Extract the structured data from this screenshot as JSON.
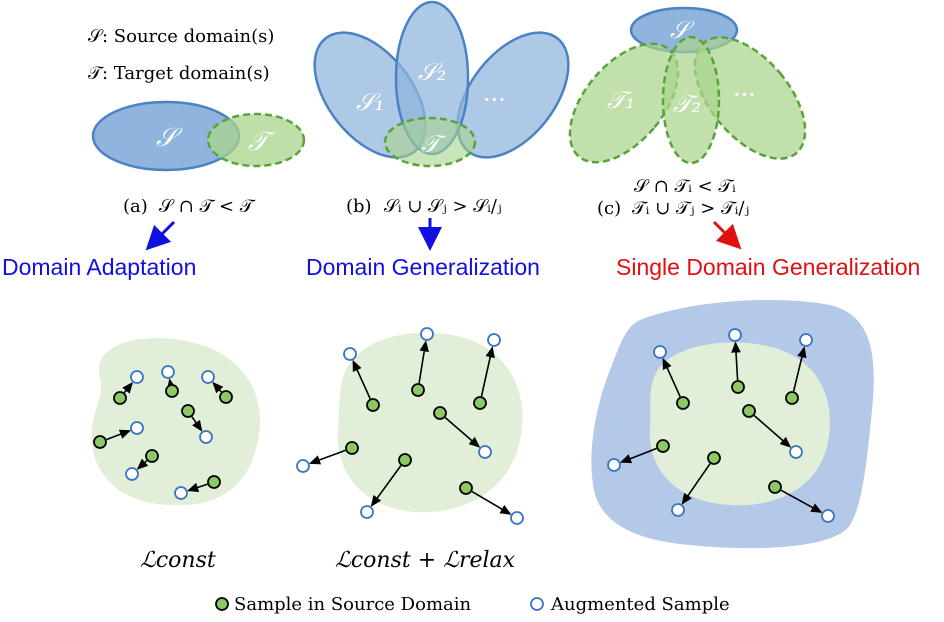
{
  "colors": {
    "source_fill": "#8fb4dd",
    "source_stroke": "#4a82c4",
    "target_fill": "#a9d48c",
    "target_stroke": "#5aa33a",
    "green_blob": "#e2efd8",
    "blue_blob": "#b4c8e8",
    "blue_label": "#1010e0",
    "red_label": "#e01010",
    "sample_fill": "#8cc864",
    "aug_stroke": "#3a74c4"
  },
  "legend_top": {
    "source_sym": "𝒮",
    "source_text": ": Source domain(s)",
    "target_sym": "𝒯",
    "target_text": ": Target domain(s)"
  },
  "panel_a": {
    "source_label": "𝒮",
    "target_label": "𝒯",
    "caption_prefix": "(a)",
    "caption_formula": "𝒮 ∩ 𝒯 < 𝒯",
    "method": "Domain Adaptation"
  },
  "panel_b": {
    "s1": "𝒮₁",
    "s2": "𝒮₂",
    "dots": "···",
    "target_label": "𝒯",
    "caption_prefix": "(b)",
    "caption_formula": "𝒮ᵢ ∪ 𝒮ⱼ > 𝒮ᵢ/ⱼ",
    "method": "Domain Generalization"
  },
  "panel_c": {
    "source_label": "𝒮",
    "t1": "𝒯₁",
    "t2": "𝒯₂",
    "dots": "···",
    "caption_line1": "𝒮 ∩ 𝒯ᵢ < 𝒯ᵢ",
    "caption_prefix": "(c)",
    "caption_line2": "𝒯ᵢ ∪ 𝒯ⱼ > 𝒯ᵢ/ⱼ",
    "method": "Single Domain Generalization"
  },
  "bottom": {
    "loss_left": "ℒconst",
    "loss_mid": "ℒconst + ℒrelax",
    "legend_sample": "Sample in Source Domain",
    "legend_aug": "Augmented Sample"
  },
  "scatter_left": [
    [
      120,
      398,
      137,
      377
    ],
    [
      172,
      391,
      168,
      372
    ],
    [
      226,
      397,
      208,
      377
    ],
    [
      100,
      442,
      137,
      428
    ],
    [
      188,
      411,
      206,
      437
    ],
    [
      152,
      456,
      132,
      474
    ],
    [
      214,
      482,
      181,
      493
    ]
  ],
  "scatter_mid": [
    [
      373,
      405,
      350,
      354
    ],
    [
      418,
      390,
      427,
      334
    ],
    [
      480,
      403,
      494,
      340
    ],
    [
      440,
      413,
      485,
      452
    ],
    [
      352,
      448,
      303,
      466
    ],
    [
      405,
      460,
      367,
      512
    ],
    [
      466,
      488,
      517,
      518
    ]
  ],
  "scatter_right": [
    [
      683,
      403,
      660,
      352
    ],
    [
      738,
      387,
      735,
      335
    ],
    [
      792,
      398,
      806,
      340
    ],
    [
      749,
      411,
      796,
      452
    ],
    [
      663,
      446,
      614,
      465
    ],
    [
      714,
      458,
      678,
      510
    ],
    [
      775,
      487,
      828,
      516
    ]
  ]
}
